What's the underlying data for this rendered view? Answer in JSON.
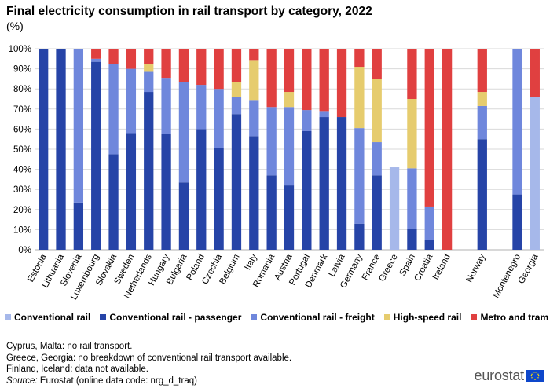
{
  "header": {
    "title": "Final electricity consumption in rail transport by category, 2022",
    "unit": "(%)"
  },
  "chart_data": {
    "type": "bar",
    "stacked": true,
    "title": "Final electricity consumption in rail transport by category, 2022",
    "ylabel": "(%)",
    "ylim": [
      0,
      100
    ],
    "yticks": [
      "0%",
      "10%",
      "20%",
      "30%",
      "40%",
      "50%",
      "60%",
      "70%",
      "80%",
      "90%",
      "100%"
    ],
    "categories": [
      "Estonia",
      "Lithuania",
      "Slovenia",
      "Luxembourg",
      "Slovakia",
      "Sweden",
      "Netherlands",
      "Hungary",
      "Bulgaria",
      "Poland",
      "Czechia",
      "Belgium",
      "Italy",
      "Romania",
      "Austria",
      "Portugal",
      "Denmark",
      "Latvia",
      "Germany",
      "France",
      "Greece",
      "Spain",
      "Croatia",
      "Ireland",
      "",
      "Norway",
      "",
      "Montenegro",
      "Georgia"
    ],
    "series": [
      {
        "name": "Conventional rail",
        "color": "#a6b8ea",
        "values": [
          0,
          0,
          0,
          0,
          0,
          0,
          0,
          0,
          0,
          0,
          0,
          0,
          0,
          0,
          0,
          0,
          0,
          0,
          0,
          0,
          41,
          0,
          0,
          0,
          0,
          0,
          0,
          0,
          76
        ]
      },
      {
        "name": "Conventional rail - passenger",
        "color": "#2644a7",
        "values": [
          100,
          100,
          23.5,
          93.5,
          47.5,
          58,
          78.5,
          57.5,
          33.5,
          60,
          50.5,
          67.5,
          56.5,
          37,
          32,
          59,
          66,
          66,
          13,
          37,
          0,
          10.5,
          5,
          0,
          0,
          55,
          0,
          27.5,
          0
        ]
      },
      {
        "name": "Conventional rail - freight",
        "color": "#6f87dc",
        "values": [
          0,
          0,
          76.5,
          1.5,
          45,
          32,
          10,
          28,
          50,
          22,
          29.5,
          8.5,
          18,
          34,
          39,
          10.5,
          3,
          0,
          47.5,
          16.5,
          0,
          30,
          16.5,
          0,
          0,
          16.5,
          0,
          72.5,
          0
        ]
      },
      {
        "name": "High-speed rail",
        "color": "#e6cc6e",
        "values": [
          0,
          0,
          0,
          0,
          0,
          0,
          4,
          0,
          0,
          0,
          0,
          7.5,
          19.5,
          0,
          7.5,
          0,
          0,
          0,
          30.5,
          31.5,
          0,
          34.5,
          0,
          0,
          0,
          7,
          0,
          0,
          0
        ]
      },
      {
        "name": "Metro and tram",
        "color": "#e04040",
        "values": [
          0,
          0,
          0,
          5,
          7.5,
          10,
          7.5,
          14.5,
          16.5,
          18,
          20,
          16.5,
          6,
          29,
          21.5,
          30.5,
          31,
          34,
          9,
          15,
          0,
          25,
          78.5,
          100,
          0,
          21.5,
          0,
          0,
          24
        ]
      }
    ],
    "legend_position": "bottom",
    "grid": true
  },
  "notes": {
    "line1": "Cyprus, Malta: no rail transport.",
    "line2": "Greece, Georgia: no breakdown of conventional  rail transport available.",
    "line3": "Finland,  Iceland: data not available.",
    "source_label": "Source:",
    "source_text": " Eurostat (online data code: nrg_d_traq)"
  },
  "logo": {
    "text": "eurostat",
    "icon": "eu-flag-icon",
    "flag_color": "#0e47cb",
    "star_color": "#ffdd00"
  }
}
